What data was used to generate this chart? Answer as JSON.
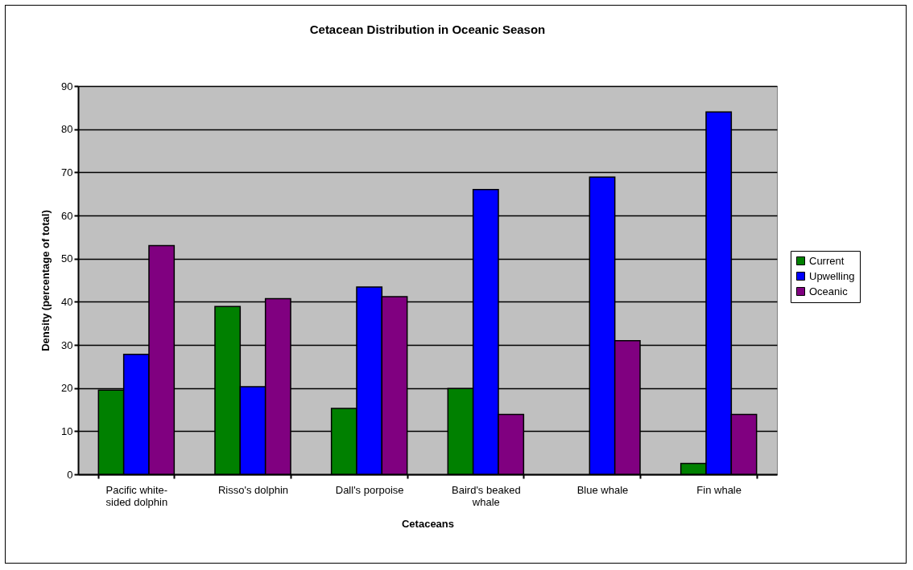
{
  "chart_data": {
    "type": "bar",
    "title": "Cetacean Distribution in Oceanic Season",
    "xlabel": "Cetaceans",
    "ylabel": "Density (percentage of total)",
    "categories": [
      "Pacific white-sided dolphin",
      "Risso's dolphin",
      "Dall's porpoise",
      "Baird's beaked whale",
      "Blue whale",
      "Fin whale"
    ],
    "series": [
      {
        "name": "Current",
        "color": "#008000",
        "values": [
          19.5,
          38.9,
          15.3,
          19.9,
          null,
          2.5
        ]
      },
      {
        "name": "Upwelling",
        "color": "#0000ff",
        "values": [
          27.8,
          20.3,
          43.4,
          66,
          68.9,
          84
        ]
      },
      {
        "name": "Oceanic",
        "color": "#800080",
        "values": [
          53,
          40.7,
          41.2,
          13.9,
          31,
          13.9
        ]
      }
    ],
    "ylim": [
      0,
      90
    ],
    "yticks": [
      0,
      10,
      20,
      30,
      40,
      50,
      60,
      70,
      80,
      90
    ],
    "grid": "y",
    "legend": "right"
  }
}
